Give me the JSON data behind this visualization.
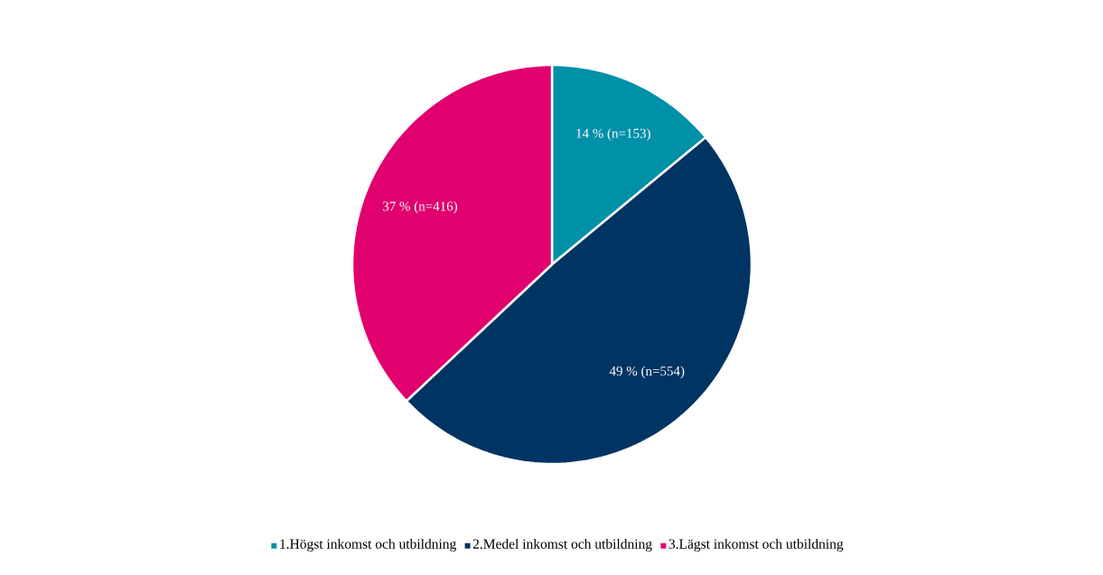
{
  "chart_data": {
    "type": "pie",
    "categories": [
      "1.Högst inkomst och utbildning",
      "2.Medel inkomst och utbildning",
      "3.Lägst inkomst och utbildning"
    ],
    "values": [
      14,
      49,
      37
    ],
    "colors": [
      "#0090a8",
      "#003462",
      "#e0006e"
    ],
    "value_labels": [
      "14 % (n=153)",
      "49 % (n=554)",
      "37 % (n=416)"
    ],
    "legend": "bottom"
  }
}
